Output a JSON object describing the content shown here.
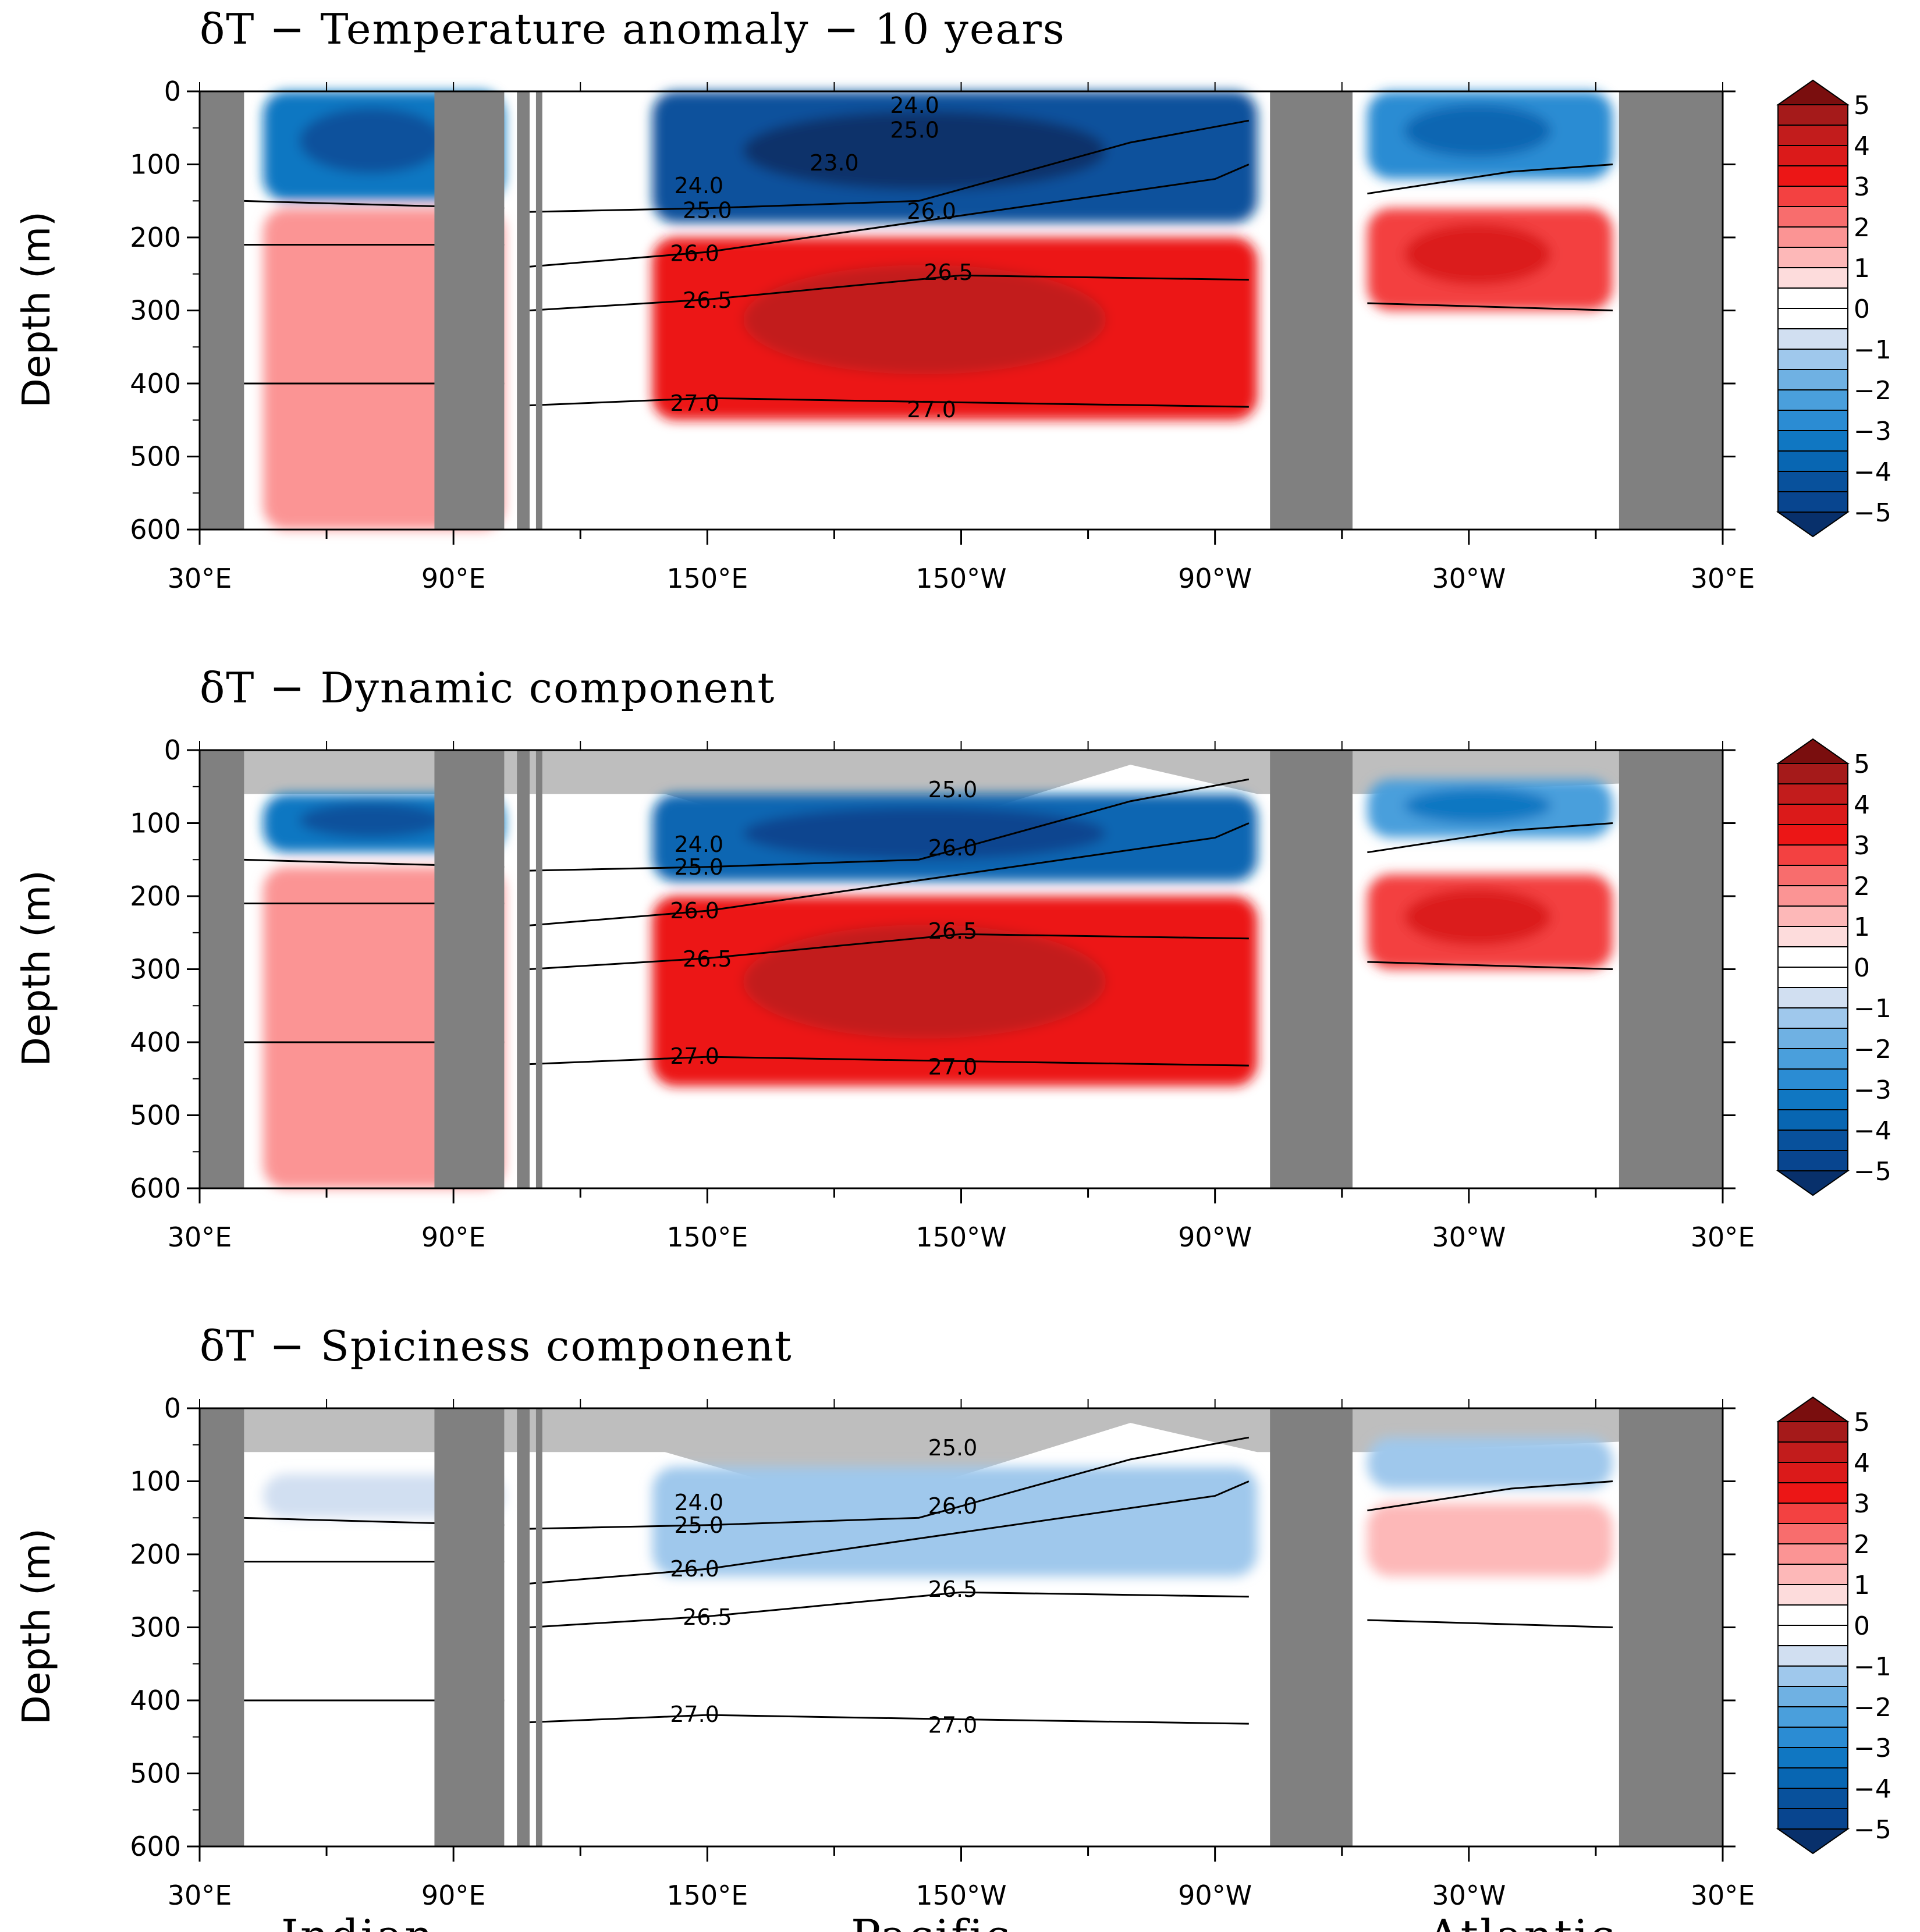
{
  "colors": {
    "land": "#808080",
    "mask": "#bebebe",
    "scale": [
      "#08306b",
      "#08458f",
      "#08519c",
      "#0866b2",
      "#1077c2",
      "#2b8cd3",
      "#4a9fdc",
      "#6fb1e3",
      "#9fc8ec",
      "#d1dff1",
      "#ffffff",
      "#ffffff",
      "#fddcdc",
      "#fdb8b8",
      "#fb9494",
      "#f86d6d",
      "#f34141",
      "#ec1616",
      "#db1a1a",
      "#c21c1c",
      "#a51a1a",
      "#7a0e0e"
    ]
  },
  "colorbar": {
    "tick_labels": [
      "5",
      "4",
      "3",
      "2",
      "1",
      "0",
      "−1",
      "−2",
      "−3",
      "−4",
      "−5"
    ]
  },
  "basins": {
    "indian": "Indian",
    "pacific": "Pacific",
    "atlantic": "Atlantic"
  },
  "chart_data": [
    {
      "type": "heatmap",
      "title": "δT − Temperature anomaly − 10 years",
      "ylabel": "Depth (m)",
      "x_tick_labels": [
        "30°E",
        "90°E",
        "150°E",
        "150°W",
        "90°W",
        "30°W",
        "30°E"
      ],
      "y_tick_labels": [
        "0",
        "100",
        "200",
        "300",
        "400",
        "500",
        "600"
      ],
      "ylim": [
        600,
        0
      ],
      "xlim_deg_east": [
        30,
        390
      ],
      "colorbar_range": [
        -5,
        5
      ],
      "isopycnal_labels": [
        "23.0",
        "24.0",
        "24.0",
        "25.0",
        "25.0",
        "26.0",
        "26.0",
        "26.5",
        "26.5",
        "27.0",
        "27.0"
      ],
      "anomaly_regions": [
        {
          "basin": "Indian",
          "depth_top": 0,
          "depth_bottom": 150,
          "value": -3.5
        },
        {
          "basin": "Indian",
          "depth_top": 160,
          "depth_bottom": 600,
          "value": 1.5
        },
        {
          "basin": "Pacific",
          "depth_top": 0,
          "depth_bottom": 180,
          "value": -4.5
        },
        {
          "basin": "Pacific",
          "depth_top": 200,
          "depth_bottom": 450,
          "value": 3
        },
        {
          "basin": "Atlantic",
          "depth_top": 0,
          "depth_bottom": 120,
          "value": -3
        },
        {
          "basin": "Atlantic",
          "depth_top": 160,
          "depth_bottom": 300,
          "value": 2.5
        }
      ]
    },
    {
      "type": "heatmap",
      "title": "δT − Dynamic component",
      "ylabel": "Depth (m)",
      "x_tick_labels": [
        "30°E",
        "90°E",
        "150°E",
        "150°W",
        "90°W",
        "30°W",
        "30°E"
      ],
      "y_tick_labels": [
        "0",
        "100",
        "200",
        "300",
        "400",
        "500",
        "600"
      ],
      "ylim": [
        600,
        0
      ],
      "xlim_deg_east": [
        30,
        390
      ],
      "colorbar_range": [
        -5,
        5
      ],
      "isopycnal_labels": [
        "24.0",
        "25.0",
        "25.0",
        "26.0",
        "26.0",
        "26.5",
        "26.5",
        "27.0",
        "27.0"
      ],
      "anomaly_regions": [
        {
          "basin": "Indian",
          "depth_top": 60,
          "depth_bottom": 140,
          "value": -3.5
        },
        {
          "basin": "Indian",
          "depth_top": 160,
          "depth_bottom": 600,
          "value": 1.5
        },
        {
          "basin": "Pacific",
          "depth_top": 60,
          "depth_bottom": 180,
          "value": -4
        },
        {
          "basin": "Pacific",
          "depth_top": 200,
          "depth_bottom": 460,
          "value": 3
        },
        {
          "basin": "Atlantic",
          "depth_top": 40,
          "depth_bottom": 120,
          "value": -2.5
        },
        {
          "basin": "Atlantic",
          "depth_top": 170,
          "depth_bottom": 300,
          "value": 2.5
        }
      ]
    },
    {
      "type": "heatmap",
      "title": "δT − Spiciness component",
      "ylabel": "Depth (m)",
      "x_tick_labels": [
        "30°E",
        "90°E",
        "150°E",
        "150°W",
        "90°W",
        "30°W",
        "30°E"
      ],
      "y_tick_labels": [
        "0",
        "100",
        "200",
        "300",
        "400",
        "500",
        "600"
      ],
      "ylim": [
        600,
        0
      ],
      "xlim_deg_east": [
        30,
        390
      ],
      "colorbar_range": [
        -5,
        5
      ],
      "isopycnal_labels": [
        "24.0",
        "25.0",
        "25.0",
        "26.0",
        "26.0",
        "26.5",
        "26.5",
        "27.0",
        "27.0"
      ],
      "anomaly_regions": [
        {
          "basin": "Indian",
          "depth_top": 90,
          "depth_bottom": 150,
          "value": -0.7
        },
        {
          "basin": "Pacific",
          "depth_top": 80,
          "depth_bottom": 230,
          "value": -1.5
        },
        {
          "basin": "Atlantic",
          "depth_top": 40,
          "depth_bottom": 110,
          "value": -1.5
        },
        {
          "basin": "Atlantic",
          "depth_top": 130,
          "depth_bottom": 230,
          "value": 1.2
        }
      ]
    }
  ]
}
